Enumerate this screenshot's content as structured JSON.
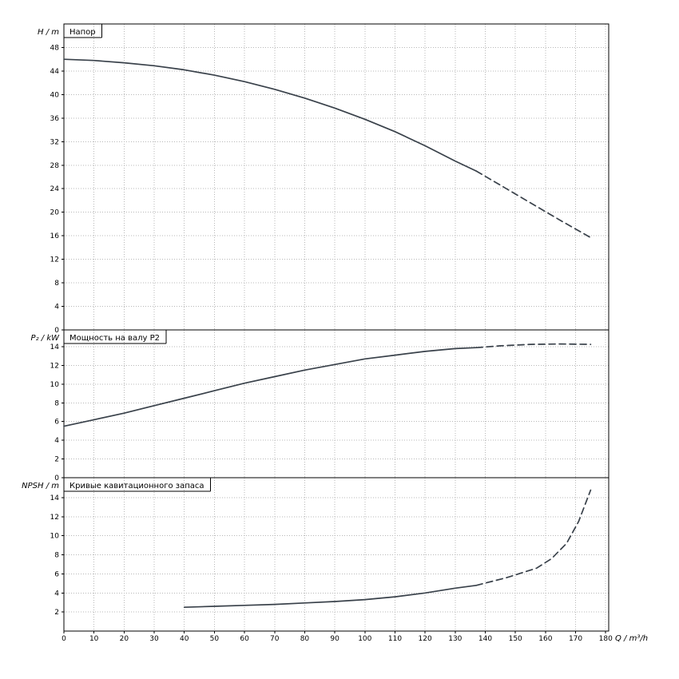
{
  "x_axis": {
    "label": "Q / m³/h",
    "min": 0,
    "max": 181,
    "ticks": [
      0,
      10,
      20,
      30,
      40,
      50,
      60,
      70,
      80,
      90,
      100,
      110,
      120,
      130,
      140,
      150,
      160,
      170,
      180
    ]
  },
  "colors": {
    "curve": "#39414a",
    "grid": "#b8b8b8",
    "axis": "#000000",
    "background": "#ffffff"
  },
  "chart_data": [
    {
      "id": "head",
      "type": "line",
      "title": "Напор",
      "ylabel": "H / m",
      "ylim": [
        0,
        52
      ],
      "yticks": [
        0,
        4,
        8,
        12,
        16,
        20,
        24,
        28,
        32,
        36,
        40,
        44,
        48
      ],
      "series": [
        {
          "name": "head-solid",
          "style": "solid",
          "x": [
            0,
            10,
            20,
            30,
            40,
            50,
            60,
            70,
            80,
            90,
            100,
            110,
            120,
            130,
            137
          ],
          "y": [
            46,
            45.8,
            45.4,
            44.9,
            44.2,
            43.3,
            42.2,
            40.9,
            39.4,
            37.7,
            35.8,
            33.7,
            31.3,
            28.7,
            27
          ]
        },
        {
          "name": "head-extrapolated",
          "style": "dashed",
          "x": [
            137,
            145,
            155,
            165,
            175
          ],
          "y": [
            27,
            24.6,
            21.6,
            18.6,
            15.7
          ]
        }
      ]
    },
    {
      "id": "power",
      "type": "line",
      "title": "Мощность на валу P2",
      "ylabel": "P₂ / kW",
      "ylim": [
        0,
        15.8
      ],
      "yticks": [
        0,
        2,
        4,
        6,
        8,
        10,
        12,
        14
      ],
      "series": [
        {
          "name": "power-solid",
          "style": "solid",
          "x": [
            0,
            10,
            20,
            30,
            40,
            50,
            60,
            70,
            80,
            90,
            100,
            110,
            120,
            130,
            137
          ],
          "y": [
            5.5,
            6.2,
            6.9,
            7.7,
            8.5,
            9.3,
            10.1,
            10.8,
            11.5,
            12.1,
            12.7,
            13.1,
            13.5,
            13.8,
            13.9
          ]
        },
        {
          "name": "power-extrapolated",
          "style": "dashed",
          "x": [
            137,
            145,
            155,
            165,
            175
          ],
          "y": [
            13.9,
            14.1,
            14.25,
            14.3,
            14.25
          ]
        }
      ]
    },
    {
      "id": "npsh",
      "type": "line",
      "title": "Кривые кавитационного запаса",
      "ylabel": "NPSH / m",
      "ylim": [
        0,
        16.1
      ],
      "yticks": [
        2,
        4,
        6,
        8,
        10,
        12,
        14
      ],
      "series": [
        {
          "name": "npsh-solid",
          "style": "solid",
          "x": [
            40,
            50,
            60,
            70,
            80,
            90,
            100,
            110,
            120,
            130,
            137
          ],
          "y": [
            2.5,
            2.6,
            2.7,
            2.8,
            2.95,
            3.1,
            3.3,
            3.6,
            4.0,
            4.5,
            4.8
          ]
        },
        {
          "name": "npsh-extrapolated",
          "style": "dashed",
          "x": [
            137,
            147,
            157,
            162,
            167,
            171,
            175
          ],
          "y": [
            4.8,
            5.6,
            6.6,
            7.6,
            9.2,
            11.5,
            14.8
          ]
        }
      ]
    }
  ]
}
